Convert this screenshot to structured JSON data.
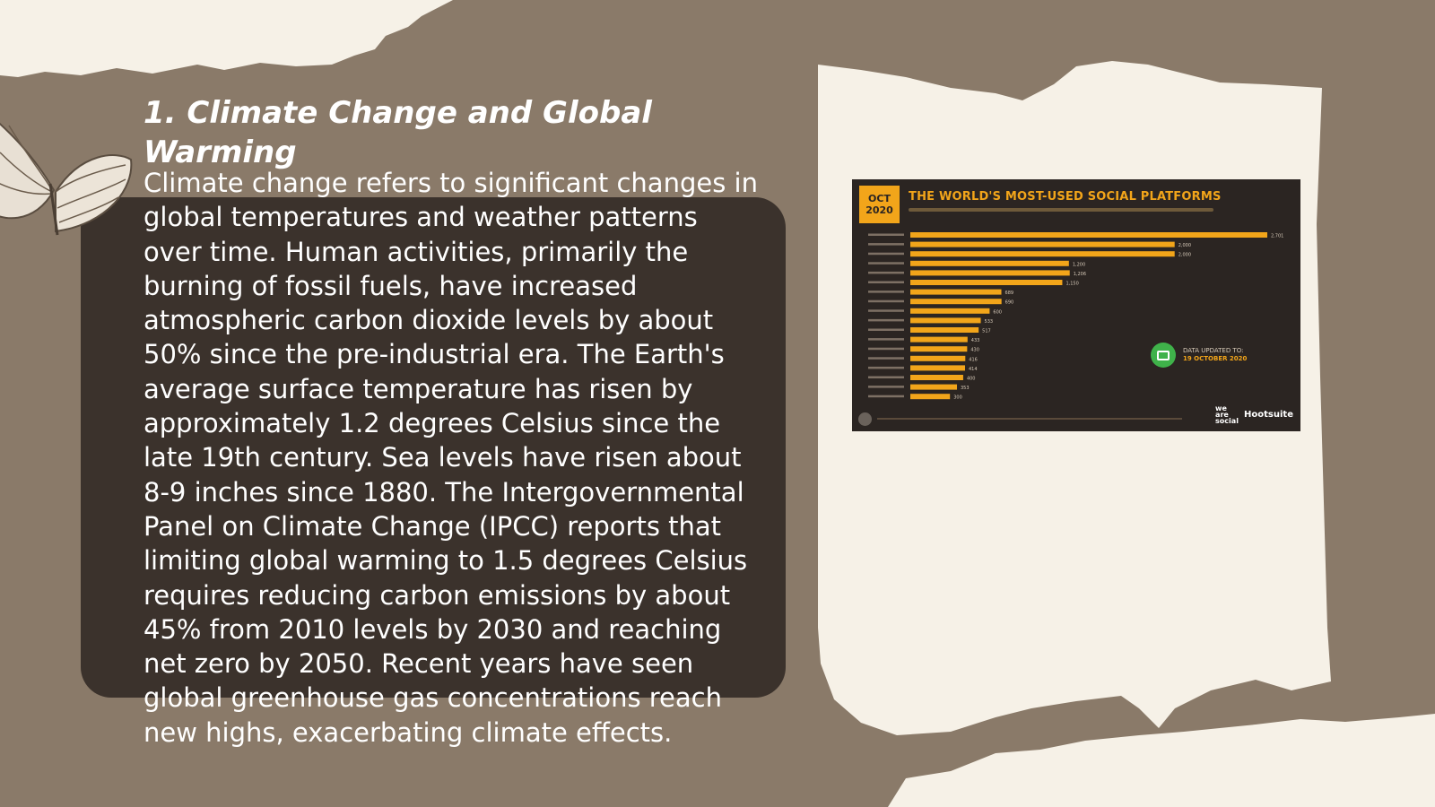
{
  "slide": {
    "title": "1. Climate Change and Global Warming",
    "body": "Climate change refers to significant changes in global temperatures and weather patterns over time. Human activities, primarily the burning of fossil fuels, have increased atmospheric carbon dioxide levels by about 50% since the pre-industrial era. The Earth's average surface temperature has risen by approximately 1.2 degrees Celsius since the late 19th century. Sea levels have risen about 8-9 inches since 1880. The Intergovernmental Panel on Climate Change (IPCC) reports that limiting global warming to 1.5 degrees Celsius requires reducing carbon emissions by about 45% from 2010 levels by 2030 and reaching net zero by 2050. Recent years have seen global greenhouse gas concentrations reach new highs, exacerbating climate effects."
  },
  "colors": {
    "background": "#8a7a69",
    "paper": "#f6f1e7",
    "dark_panel": "#3b322c",
    "chart_bg": "#2b2522",
    "chart_accent": "#f2a51a"
  },
  "image": {
    "badge_month": "OCT",
    "badge_year": "2020",
    "title": "THE WORLD'S MOST-USED SOCIAL PLATFORMS",
    "updated_label": "DATA UPDATED TO:",
    "updated_date": "19 OCTOBER 2020",
    "brand_1": "we are social",
    "brand_2": "Hootsuite",
    "bars": [
      {
        "value": 2701,
        "label": "2,701"
      },
      {
        "value": 2000,
        "label": "2,000"
      },
      {
        "value": 2000,
        "label": "2,000"
      },
      {
        "value": 1200,
        "label": "1,200"
      },
      {
        "value": 1206,
        "label": "1,206"
      },
      {
        "value": 1150,
        "label": "1,150"
      },
      {
        "value": 689,
        "label": "689"
      },
      {
        "value": 690,
        "label": "690"
      },
      {
        "value": 600,
        "label": "600"
      },
      {
        "value": 533,
        "label": "533"
      },
      {
        "value": 517,
        "label": "517"
      },
      {
        "value": 433,
        "label": "433"
      },
      {
        "value": 430,
        "label": "430"
      },
      {
        "value": 416,
        "label": "416"
      },
      {
        "value": 414,
        "label": "414"
      },
      {
        "value": 400,
        "label": "400"
      },
      {
        "value": 353,
        "label": "353"
      },
      {
        "value": 300,
        "label": "300"
      }
    ]
  }
}
